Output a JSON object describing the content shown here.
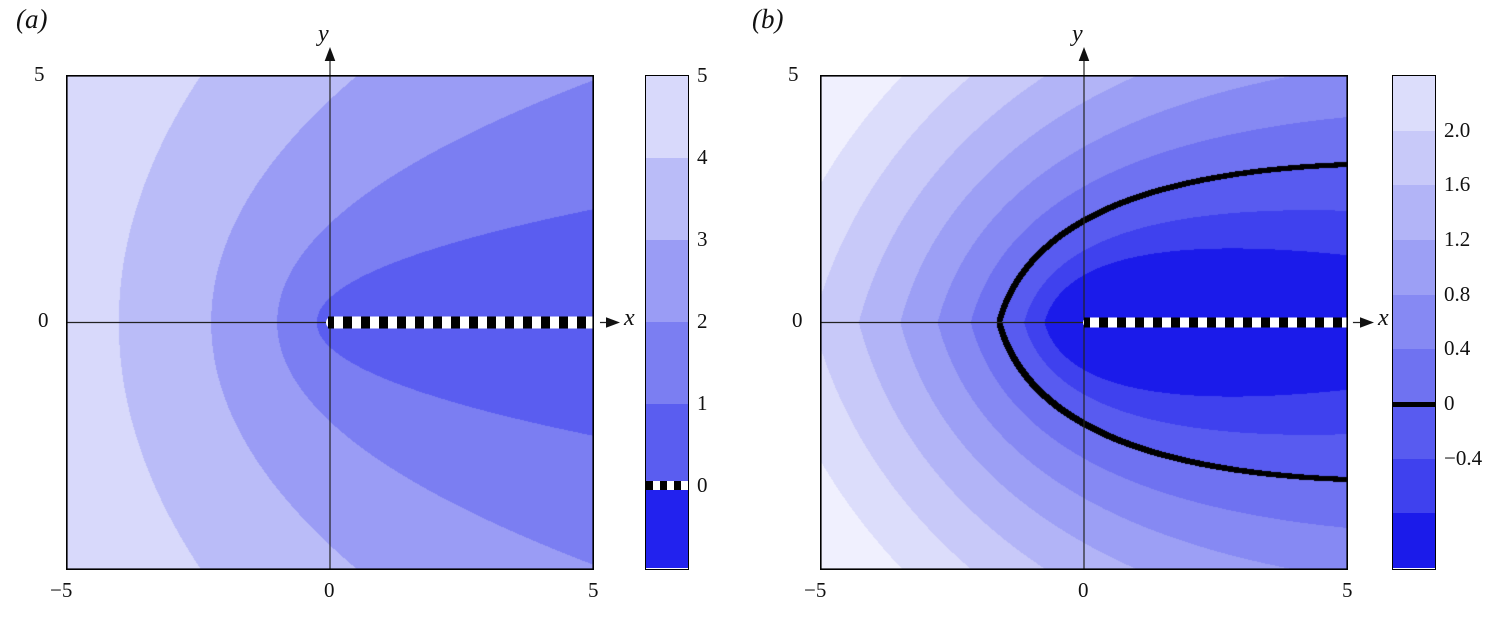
{
  "figure": {
    "panels": [
      {
        "label": "(a)",
        "x_axis_label": "x",
        "y_axis_label": "y",
        "x_tick_labels": [
          "−5",
          "0",
          "5"
        ],
        "y_tick_labels": [
          "5",
          "0"
        ]
      },
      {
        "label": "(b)",
        "x_axis_label": "x",
        "y_axis_label": "y",
        "x_tick_labels": [
          "−5",
          "0",
          "5"
        ],
        "y_tick_labels": [
          "5",
          "0"
        ]
      }
    ]
  },
  "chart_data": [
    {
      "type": "heatmap",
      "panel": "(a)",
      "title": "(a)",
      "xlabel": "x",
      "ylabel": "y",
      "x_range": [
        -5,
        5
      ],
      "y_range": [
        -5,
        5
      ],
      "x_ticks": [
        -5,
        0,
        5
      ],
      "y_ticks": [
        0,
        5
      ],
      "description": "Filled contour plot of f(x,y)=sqrt(2(r−x)), r=sqrt(x^2+y^2). Parabolic contour bands opening toward +x, values increase from 0 near the positive x-axis (dark blue) to ~5 at the far-left corners (pale). The zero-level contour hugging the positive x-axis is drawn as a thick black-and-white dashed stripe (branch cut / crack).",
      "field_params": {
        "sqrt_r_minus_x": 1,
        "sqrt_r_plus_x": 0,
        "offset": 0
      },
      "levels": [
        0,
        1,
        2,
        3,
        4,
        5
      ],
      "band_colors_low_to_high": [
        "#2222ee",
        "#5a5df0",
        "#7b7ef2",
        "#9a9cf5",
        "#babcf8",
        "#d8d9fb",
        "#f0f0fe"
      ],
      "zero_contour": "dashed-black-white-stripe",
      "branch_cut": "dashed black-white stripe along positive x-axis from origin to right edge",
      "colorbar": {
        "tick_labels": [
          "5",
          "4",
          "3",
          "2",
          "1",
          "0"
        ],
        "tick_fracs_from_top": [
          0,
          0.1667,
          0.3333,
          0.5,
          0.6667,
          0.8333
        ],
        "segment_colors_bottom_to_top": [
          "#2222ee",
          "#5a5df0",
          "#7b7ef2",
          "#9a9cf5",
          "#babcf8",
          "#d8d9fb"
        ],
        "zero_marker": "dashed-stripe",
        "zero_frac_from_top": 0.8333
      }
    },
    {
      "type": "heatmap",
      "panel": "(b)",
      "title": "(b)",
      "xlabel": "x",
      "ylabel": "y",
      "x_range": [
        -5,
        5
      ],
      "y_range": [
        -5,
        5
      ],
      "x_ticks": [
        -5,
        0,
        5
      ],
      "y_ticks": [
        0,
        5
      ],
      "description": "Filled contour plot, approx f(x,y)=sqrt(2(r−x))+0.25·sqrt(2(r+x))−2.53. Dark negative region (minimum near origin, below −0.4) surrounded by a thick solid black zero contour crossing the negative x-axis near x≈−1.6 and opening toward +x, exiting the right edge near y≈±3. Values rise to ~2.4 (pale) at the left corners. Black-and-white dashed stripe along the positive x-axis marks the branch cut / crack.",
      "field_params": {
        "sqrt_r_minus_x": 1,
        "sqrt_r_plus_x": 0.25,
        "offset": -2.53
      },
      "levels": [
        -0.8,
        -0.4,
        0,
        0.4,
        0.8,
        1.2,
        1.6,
        2.0,
        2.4
      ],
      "band_colors_low_to_high": [
        "#1b1bea",
        "#3f41ee",
        "#585bf0",
        "#6f72f1",
        "#8689f3",
        "#9c9ff5",
        "#b2b4f7",
        "#c8c9f9",
        "#dcddfb",
        "#f0f0fe"
      ],
      "zero_contour": "solid-black-thick",
      "zero_contour_points": "crosses x-axis at x≈−1.6, passes (0,±2.2), exits right edge near (5,±3)",
      "branch_cut": "dashed black-white stripe along positive x-axis from origin to right edge",
      "colorbar": {
        "tick_labels": [
          "2.0",
          "1.6",
          "1.2",
          "0.8",
          "0.4",
          "0",
          "−0.4"
        ],
        "tick_fracs_from_top": [
          0.1111,
          0.2222,
          0.3333,
          0.4444,
          0.5556,
          0.6667,
          0.7778
        ],
        "segment_colors_bottom_to_top": [
          "#1b1bea",
          "#3f41ee",
          "#585bf0",
          "#6f72f1",
          "#8689f3",
          "#9c9ff5",
          "#b2b4f7",
          "#c8c9f9",
          "#dcddfb"
        ],
        "zero_marker": "solid-line",
        "zero_frac_from_top": 0.6667
      }
    }
  ]
}
